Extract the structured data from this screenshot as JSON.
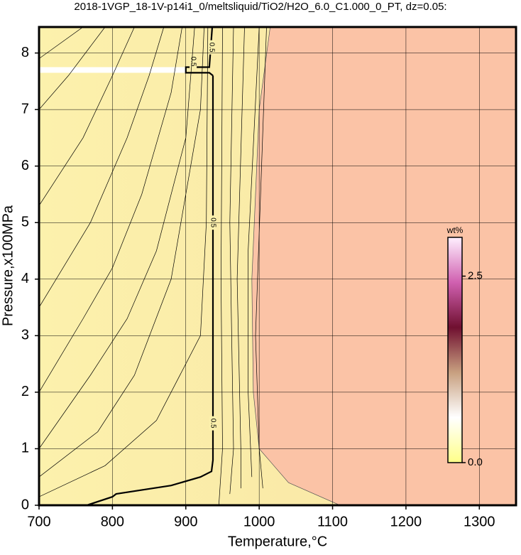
{
  "chart_data": {
    "type": "contour",
    "title": "2018-1VGP_18-1V-p14i1_0/meltsliquid/TiO2/H2O_6.0_C1.000_0_PT, dz=0.05:",
    "x_label": "Temperature,°C",
    "y_label": "Pressure,x100MPa",
    "xlim": [
      700,
      1350
    ],
    "ylim": [
      0,
      8.46
    ],
    "xticks": [
      700,
      800,
      900,
      1000,
      1100,
      1200,
      1300
    ],
    "yticks": [
      0,
      1,
      2,
      3,
      4,
      5,
      6,
      7,
      8
    ],
    "grid": true,
    "low_color": "#fcf1ac",
    "high_color": "#fbc3a6",
    "boundary": {
      "x": [
        1015,
        1000,
        990,
        992,
        1000,
        1040,
        1110
      ],
      "y": [
        8.46,
        7,
        4,
        2,
        1,
        0.4,
        0
      ]
    },
    "contours": [
      {
        "level": 0.5,
        "x": [
          765,
          800,
          805,
          880,
          920,
          935,
          937,
          937,
          null,
          937,
          932,
          900,
          900,
          932,
          936
        ],
        "y": [
          0,
          0.15,
          0.2,
          0.35,
          0.5,
          0.6,
          0.8,
          7.6,
          null,
          7.6,
          7.65,
          7.65,
          7.75,
          7.75,
          8.46
        ]
      },
      {
        "x": [
          700,
          760
        ],
        "y": [
          7.9,
          8.46
        ]
      },
      {
        "x": [
          700,
          740,
          790
        ],
        "y": [
          7.0,
          7.6,
          8.46
        ]
      },
      {
        "x": [
          700,
          760,
          800,
          830
        ],
        "y": [
          5.3,
          6.5,
          7.6,
          8.46
        ]
      },
      {
        "x": [
          700,
          770,
          820,
          850,
          870
        ],
        "y": [
          3.5,
          5,
          6.5,
          7.6,
          8.46
        ]
      },
      {
        "x": [
          700,
          760,
          800,
          840,
          880,
          895
        ],
        "y": [
          2.0,
          3.3,
          4.2,
          5.5,
          7.3,
          8.46
        ]
      },
      {
        "x": [
          700,
          770,
          820,
          860,
          900,
          912
        ],
        "y": [
          1.0,
          2.3,
          3.3,
          4.5,
          6.5,
          8.46
        ]
      },
      {
        "x": [
          700,
          780,
          830,
          880,
          920,
          925
        ],
        "y": [
          0.5,
          1.3,
          2.3,
          4,
          7,
          8.46
        ]
      },
      {
        "x": [
          700,
          790,
          860,
          920,
          928,
          930
        ],
        "y": [
          0.15,
          0.7,
          1.5,
          3,
          5,
          8.46
        ]
      },
      {
        "x": [
          945,
          950,
          948,
          950
        ],
        "y": [
          0,
          1,
          4,
          8.46
        ]
      },
      {
        "x": [
          960,
          965,
          960,
          965
        ],
        "y": [
          0.2,
          1,
          5,
          8.46
        ]
      },
      {
        "x": [
          975,
          975,
          970,
          980
        ],
        "y": [
          0.3,
          1,
          4,
          8.46
        ]
      },
      {
        "x": [
          990,
          985,
          985,
          1000
        ],
        "y": [
          0.5,
          2,
          4.5,
          8.46
        ]
      },
      {
        "x": [
          1005,
          1000,
          995,
          1010
        ],
        "y": [
          0.3,
          1,
          3,
          8.46
        ]
      }
    ],
    "colorbar": {
      "label": "wt%",
      "lim": [
        0,
        3.02
      ],
      "ticks": [
        {
          "value": 0,
          "label": "0.0"
        },
        2.5
      ],
      "colors": [
        "#ffff88",
        "#ffffff",
        "#c8a080",
        "#701030",
        "#d060b0",
        "#fff0ff"
      ]
    }
  }
}
